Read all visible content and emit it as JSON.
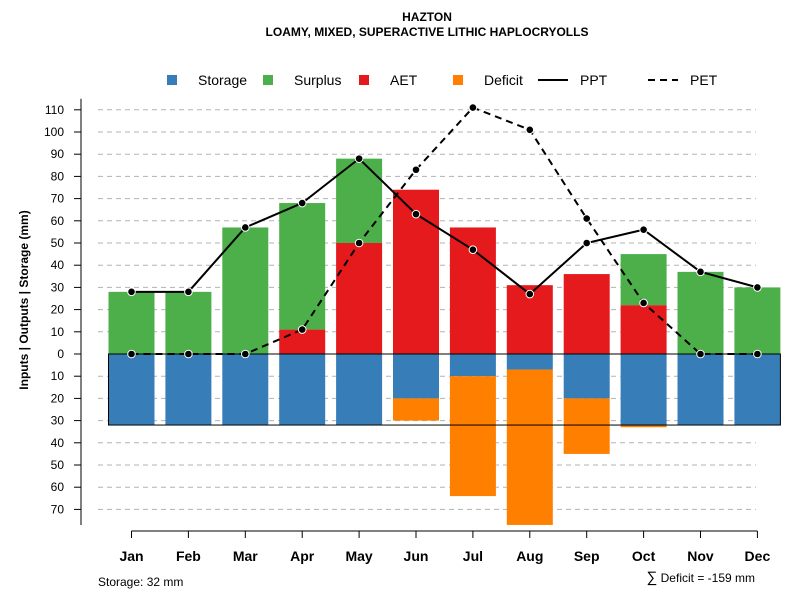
{
  "chart_data": {
    "type": "bar",
    "title": "HAZTON",
    "subtitle": "LOAMY, MIXED, SUPERACTIVE LITHIC HAPLOCRYOLLS",
    "ylabel": "Inputs | Outputs | Storage    (mm)",
    "categories": [
      "Jan",
      "Feb",
      "Mar",
      "Apr",
      "May",
      "Jun",
      "Jul",
      "Aug",
      "Sep",
      "Oct",
      "Nov",
      "Dec"
    ],
    "ylim": [
      -77,
      115
    ],
    "y_ticks": [
      110,
      100,
      90,
      80,
      70,
      60,
      50,
      40,
      30,
      20,
      10,
      0,
      -10,
      -20,
      -30,
      -40,
      -50,
      -60,
      -70
    ],
    "y_tick_labels": [
      "110",
      "100",
      "90",
      "80",
      "70",
      "60",
      "50",
      "40",
      "30",
      "20",
      "10",
      "0",
      "10",
      "20",
      "30",
      "40",
      "50",
      "60",
      "70"
    ],
    "grid": true,
    "legend_position": "top",
    "legend": [
      {
        "label": "Storage",
        "kind": "square",
        "color": "#377EB8"
      },
      {
        "label": "Surplus",
        "kind": "square",
        "color": "#4DAF4A"
      },
      {
        "label": "AET",
        "kind": "square",
        "color": "#E41A1C"
      },
      {
        "label": "Deficit",
        "kind": "square",
        "color": "#FF7F00"
      },
      {
        "label": "PPT",
        "kind": "solid"
      },
      {
        "label": "PET",
        "kind": "dashed"
      }
    ],
    "series": [
      {
        "name": "AET",
        "color": "#E41A1C",
        "values": [
          0,
          0,
          0,
          11,
          50,
          74,
          57,
          31,
          36,
          22,
          0,
          0
        ]
      },
      {
        "name": "Surplus",
        "color": "#4DAF4A",
        "values": [
          28,
          28,
          57,
          57,
          38,
          0,
          0,
          0,
          0,
          23,
          37,
          30
        ]
      },
      {
        "name": "Storage",
        "color": "#377EB8",
        "values": [
          32,
          32,
          32,
          32,
          32,
          20,
          10,
          7,
          20,
          32,
          32,
          32
        ]
      },
      {
        "name": "Deficit",
        "color": "#FF7F00",
        "values": [
          0,
          0,
          0,
          0,
          0,
          10,
          54,
          70,
          25,
          1,
          0,
          0
        ]
      },
      {
        "name": "PPT",
        "values": [
          28,
          28,
          57,
          68,
          88,
          63,
          47,
          27,
          50,
          56,
          37,
          30
        ]
      },
      {
        "name": "PET",
        "values": [
          0,
          0,
          0,
          11,
          50,
          83,
          111,
          101,
          61,
          23,
          0,
          0
        ]
      }
    ],
    "storage_capacity": 32,
    "footnote_storage": "Storage: 32 mm",
    "footnote_deficit_symbol": "∑",
    "footnote_deficit": "Deficit = -159 mm"
  }
}
